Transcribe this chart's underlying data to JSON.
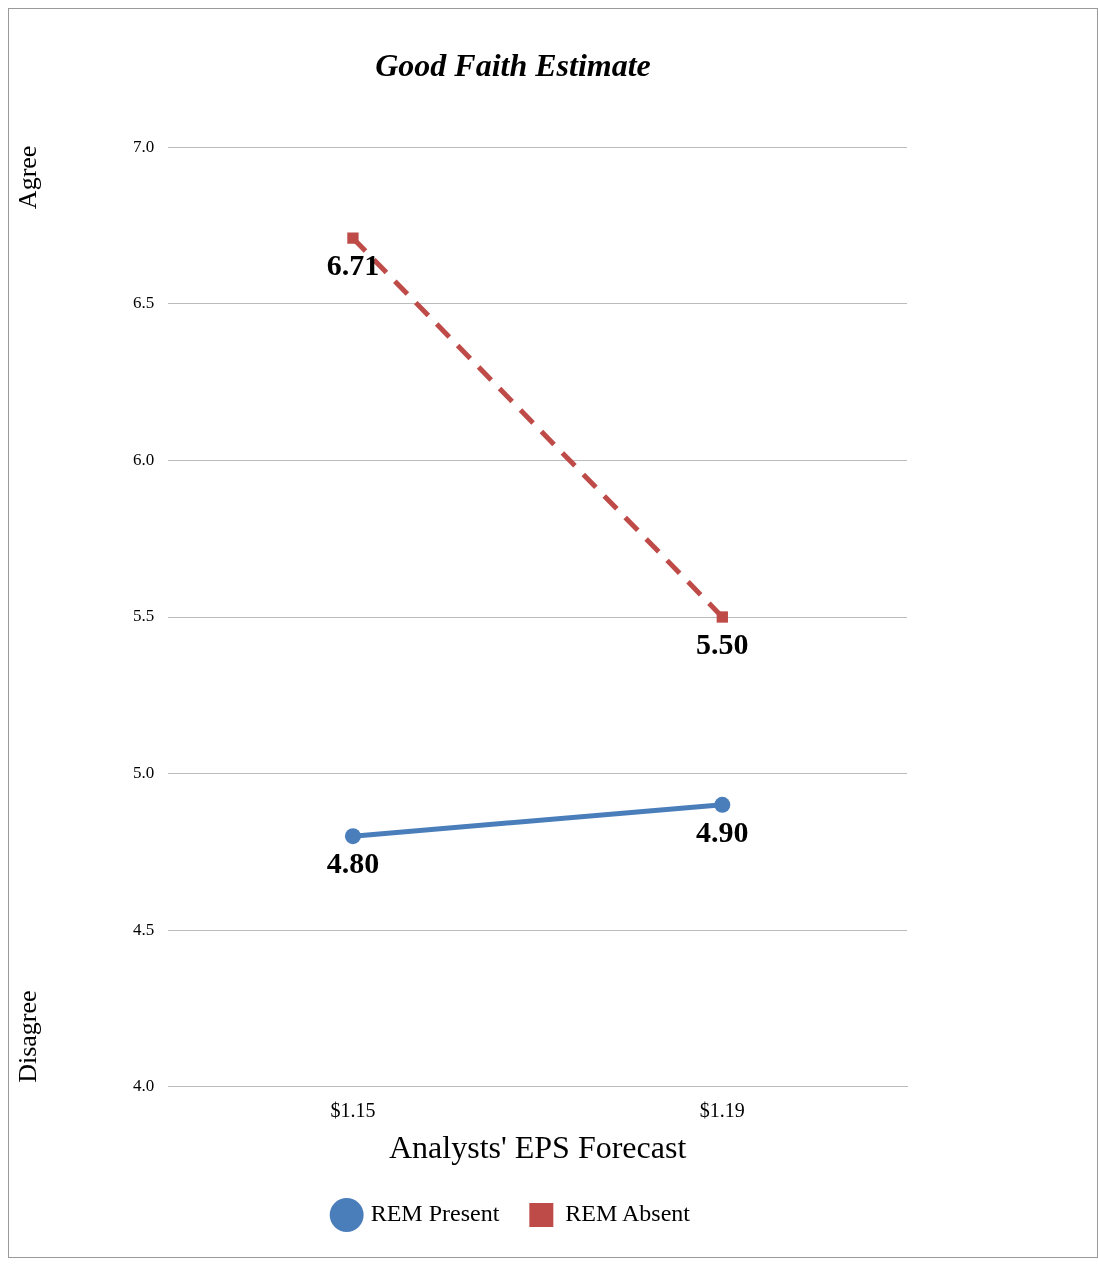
{
  "chart_data": {
    "type": "line",
    "title": "Good Faith Estimate",
    "xlabel": "Analysts' EPS Forecast",
    "categories": [
      "$1.15",
      "$1.19"
    ],
    "series": [
      {
        "name": "REM Present",
        "color": "#4a7ebb",
        "values": [
          4.8,
          4.9
        ],
        "value_labels": [
          "4.80",
          "4.90"
        ],
        "marker": "circle",
        "line_style": "solid"
      },
      {
        "name": "REM Absent",
        "color": "#be4b48",
        "values": [
          6.71,
          5.5
        ],
        "value_labels": [
          "6.71",
          "5.50"
        ],
        "marker": "square",
        "line_style": "dashed"
      }
    ],
    "ylim": [
      4,
      7
    ],
    "yticks": [
      {
        "value": 4,
        "label": "4.0"
      },
      {
        "value": 4.5,
        "label": "4.5"
      },
      {
        "value": 5,
        "label": "5.0"
      },
      {
        "value": 5.5,
        "label": "5.5"
      },
      {
        "value": 6,
        "label": "6.0"
      },
      {
        "value": 6.5,
        "label": "6.5"
      },
      {
        "value": 7,
        "label": "7.0"
      }
    ],
    "grid": "y",
    "legend": "bottom",
    "annotations": [
      "Agree",
      "Disagree"
    ]
  }
}
